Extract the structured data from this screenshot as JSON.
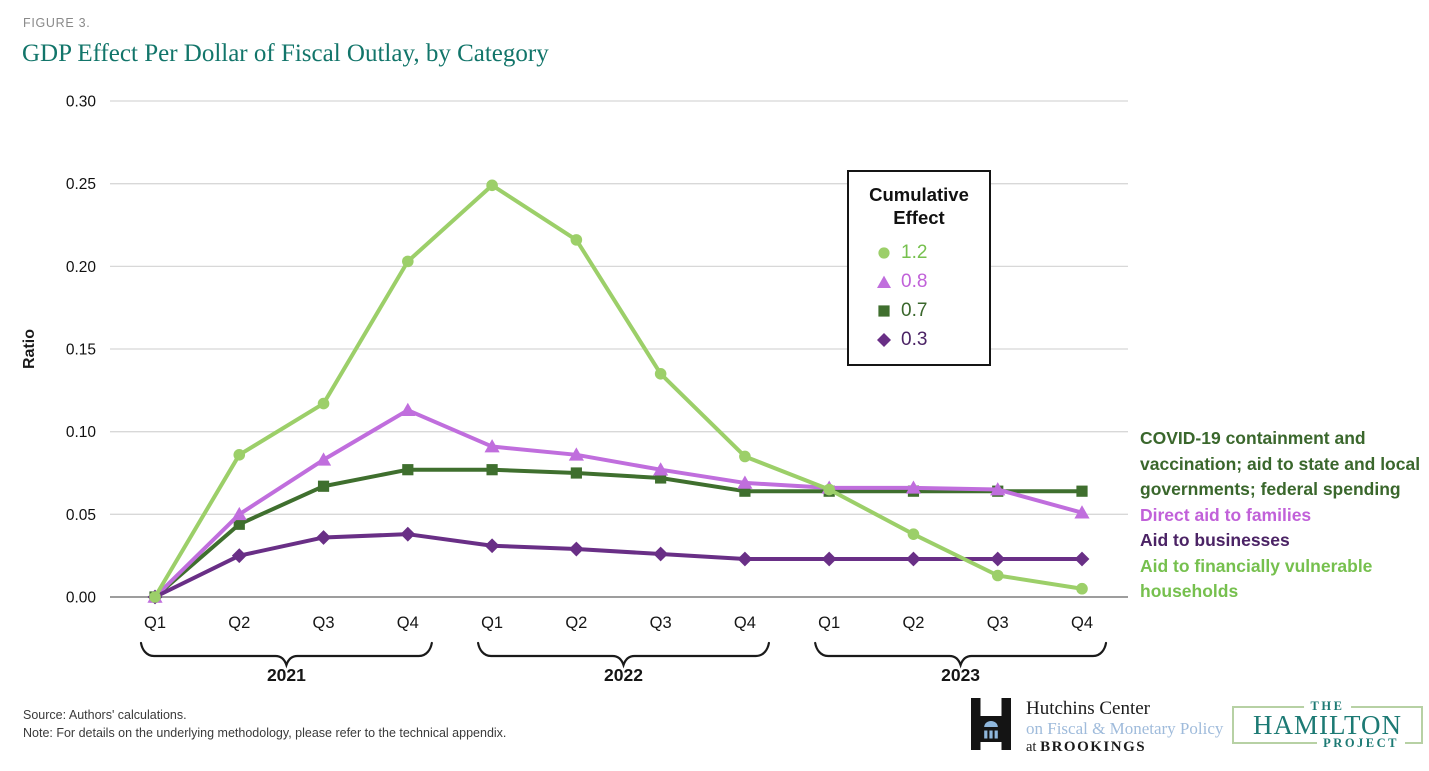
{
  "figure": {
    "label": "FIGURE 3.",
    "title": "GDP Effect Per Dollar of Fiscal Outlay, by Category"
  },
  "colors": {
    "title_teal": "#12756a",
    "figure_label_gray": "#8a8a8a",
    "grid": "#d8d8d8",
    "baseline": "#9d9d9d",
    "hamilton_teal": "#1d7a74",
    "hamilton_border": "#b7d1a4",
    "hutchins_blue": "#9fbbdb"
  },
  "chart_data": {
    "type": "line",
    "title": "GDP Effect Per Dollar of Fiscal Outlay, by Category",
    "xlabel": "",
    "ylabel": "Ratio",
    "ylim": [
      0,
      0.3
    ],
    "ytick_step": 0.05,
    "yticks": [
      "0.00",
      "0.05",
      "0.10",
      "0.15",
      "0.20",
      "0.25",
      "0.30"
    ],
    "quarter_labels": [
      "Q1",
      "Q2",
      "Q3",
      "Q4"
    ],
    "year_groups": [
      "2021",
      "2022",
      "2023"
    ],
    "x": [
      "2021 Q1",
      "2021 Q2",
      "2021 Q3",
      "2021 Q4",
      "2022 Q1",
      "2022 Q2",
      "2022 Q3",
      "2022 Q4",
      "2023 Q1",
      "2023 Q2",
      "2023 Q3",
      "2023 Q4"
    ],
    "grid": "horizontal",
    "legend": {
      "title": "Cumulative Effect",
      "position": "top-right boxed"
    },
    "series": [
      {
        "name": "Aid to financially vulnerable households",
        "cumulative_effect": "1.2",
        "marker": "circle",
        "line_color": "#9ccf69",
        "label_color": "#76c04e",
        "values": [
          0.0,
          0.086,
          0.117,
          0.203,
          0.249,
          0.216,
          0.135,
          0.085,
          0.065,
          0.038,
          0.013,
          0.005
        ]
      },
      {
        "name": "Direct aid to families",
        "cumulative_effect": "0.8",
        "marker": "triangle",
        "line_color": "#c06edd",
        "label_color": "#c161d9",
        "values": [
          0.0,
          0.05,
          0.083,
          0.113,
          0.091,
          0.086,
          0.077,
          0.069,
          0.066,
          0.066,
          0.065,
          0.051
        ]
      },
      {
        "name": "COVID-19 containment and vaccination; aid to state and local governments; federal spending",
        "cumulative_effect": "0.7",
        "marker": "square",
        "line_color": "#3f6f2e",
        "label_color": "#3a672c",
        "values": [
          0.0,
          0.044,
          0.067,
          0.077,
          0.077,
          0.075,
          0.072,
          0.064,
          0.064,
          0.064,
          0.064,
          0.064
        ]
      },
      {
        "name": "Aid to businesses",
        "cumulative_effect": "0.3",
        "marker": "diamond",
        "line_color": "#692f86",
        "label_color": "#4b2365",
        "values": [
          0.0,
          0.025,
          0.036,
          0.038,
          0.031,
          0.029,
          0.026,
          0.023,
          0.023,
          0.023,
          0.023,
          0.023
        ]
      }
    ]
  },
  "legend_box": {
    "title_line1": "Cumulative",
    "title_line2": "Effect"
  },
  "footnotes": {
    "source": "Source: Authors' calculations.",
    "note": "Note: For details on the underlying methodology, please refer to the technical appendix."
  },
  "logos": {
    "hutchins": {
      "line1": "Hutchins Center",
      "line2": "on Fiscal & Monetary Policy",
      "line3_prefix": "at ",
      "line3_brand": "BROOKINGS"
    },
    "hamilton": {
      "top": "THE",
      "name": "HAMILTON",
      "bottom": "PROJECT"
    }
  }
}
